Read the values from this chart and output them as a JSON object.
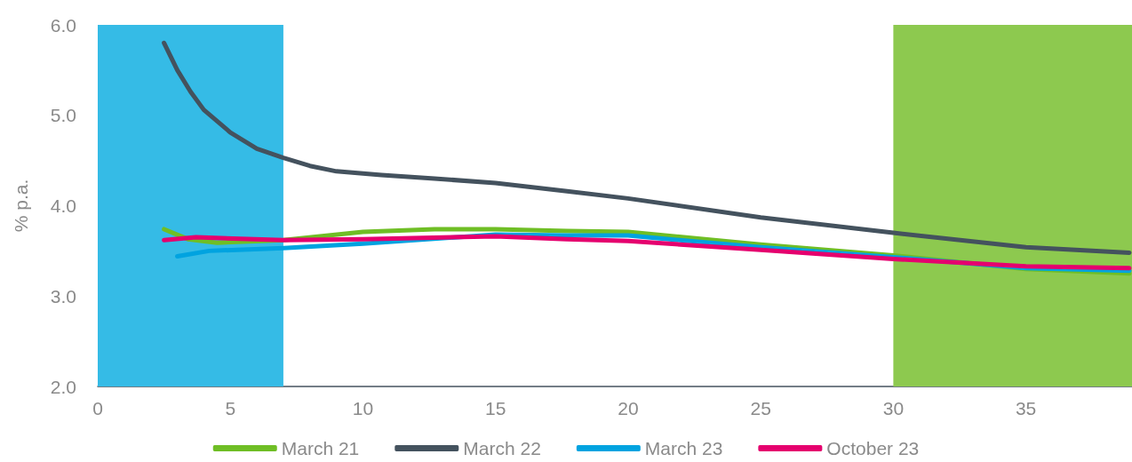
{
  "chart_data": {
    "type": "line",
    "ylabel": "% p.a.",
    "xlim": [
      0,
      39
    ],
    "xticks": [
      0,
      5,
      10,
      15,
      20,
      25,
      30,
      35
    ],
    "ylim": [
      2,
      6
    ],
    "yticks": [
      {
        "value": 2,
        "label": "2.0"
      },
      {
        "value": 3,
        "label": "3.0"
      },
      {
        "value": 4,
        "label": "4.0"
      },
      {
        "value": 5,
        "label": "5.0"
      },
      {
        "value": 6,
        "label": "6.0"
      }
    ],
    "grid": false,
    "legend": "bottom",
    "marker": "none",
    "line_style": "solid",
    "bands": [
      {
        "axis": "x",
        "from": 0,
        "to": 7,
        "color": "#35bbe6"
      },
      {
        "axis": "x",
        "from": 30,
        "to": 39,
        "color": "#8dc94f"
      }
    ],
    "series": [
      {
        "name": "March 21",
        "color": "#6fbe25",
        "x": [
          2.5,
          3.4,
          4.5,
          7,
          10,
          12.7,
          15,
          17.7,
          20,
          25,
          30,
          35,
          38.9
        ],
        "values": [
          3.74,
          3.63,
          3.59,
          3.62,
          3.71,
          3.74,
          3.74,
          3.72,
          3.71,
          3.57,
          3.45,
          3.3,
          3.25
        ]
      },
      {
        "name": "March 22",
        "color": "#44525e",
        "x": [
          2.5,
          3,
          3.5,
          4,
          5,
          6,
          7,
          8,
          9,
          10.7,
          12.7,
          15,
          17.7,
          20,
          25,
          30,
          35,
          38.9
        ],
        "values": [
          5.8,
          5.5,
          5.26,
          5.06,
          4.81,
          4.63,
          4.53,
          4.44,
          4.38,
          4.34,
          4.3,
          4.25,
          4.16,
          4.08,
          3.87,
          3.7,
          3.54,
          3.48
        ]
      },
      {
        "name": "March 23",
        "color": "#00a3e0",
        "x": [
          3,
          4.2,
          7,
          10,
          15,
          17.7,
          20,
          25,
          30,
          35,
          38.9
        ],
        "values": [
          3.44,
          3.5,
          3.53,
          3.58,
          3.68,
          3.67,
          3.67,
          3.54,
          3.43,
          3.31,
          3.28
        ]
      },
      {
        "name": "October 23",
        "color": "#e5006e",
        "x": [
          2.5,
          3.7,
          7,
          10,
          15,
          17.7,
          20,
          25,
          30,
          35,
          38.9
        ],
        "values": [
          3.62,
          3.65,
          3.62,
          3.63,
          3.66,
          3.63,
          3.61,
          3.51,
          3.41,
          3.33,
          3.31
        ]
      }
    ]
  }
}
